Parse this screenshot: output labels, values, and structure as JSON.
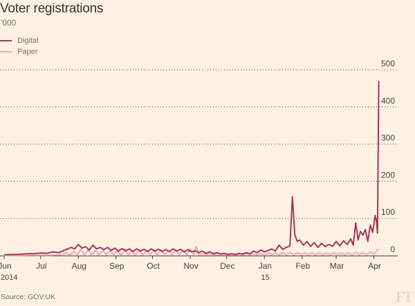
{
  "header": {
    "title": "Voter registrations",
    "subtitle": "'000"
  },
  "source": "Source: GOV.UK",
  "logo": "FT",
  "colors": {
    "digital": "#a0385e",
    "paper": "#f0a5b4",
    "grid": "#555555",
    "axis": "#43423e"
  },
  "chart_data": {
    "type": "line",
    "title": "Voter registrations",
    "ylabel": "'000",
    "ylim": [
      0,
      500
    ],
    "yticks": [
      "0",
      "100",
      "200",
      "300",
      "400",
      "500"
    ],
    "xlim": [
      "2014-06-01",
      "2015-04-24"
    ],
    "x_ticks": [
      {
        "label": "Jun",
        "sub": "2014"
      },
      {
        "label": "Jul",
        "sub": ""
      },
      {
        "label": "Aug",
        "sub": ""
      },
      {
        "label": "Sep",
        "sub": ""
      },
      {
        "label": "Oct",
        "sub": ""
      },
      {
        "label": "Nov",
        "sub": ""
      },
      {
        "label": "Dec",
        "sub": ""
      },
      {
        "label": "Jan",
        "sub": "15"
      },
      {
        "label": "Feb",
        "sub": ""
      },
      {
        "label": "Mar",
        "sub": ""
      },
      {
        "label": "Apr",
        "sub": ""
      }
    ],
    "series": [
      {
        "name": "Digital",
        "color": "#a0385e",
        "points": [
          [
            0,
            2
          ],
          [
            5,
            3
          ],
          [
            10,
            3
          ],
          [
            15,
            4
          ],
          [
            20,
            5
          ],
          [
            25,
            5
          ],
          [
            30,
            7
          ],
          [
            35,
            6
          ],
          [
            40,
            10
          ],
          [
            45,
            8
          ],
          [
            50,
            15
          ],
          [
            55,
            22
          ],
          [
            58,
            18
          ],
          [
            61,
            30
          ],
          [
            64,
            20
          ],
          [
            67,
            24
          ],
          [
            70,
            15
          ],
          [
            73,
            28
          ],
          [
            76,
            18
          ],
          [
            79,
            22
          ],
          [
            82,
            16
          ],
          [
            85,
            22
          ],
          [
            88,
            14
          ],
          [
            91,
            20
          ],
          [
            94,
            12
          ],
          [
            97,
            19
          ],
          [
            100,
            13
          ],
          [
            103,
            18
          ],
          [
            106,
            11
          ],
          [
            109,
            18
          ],
          [
            112,
            12
          ],
          [
            115,
            17
          ],
          [
            118,
            11
          ],
          [
            121,
            18
          ],
          [
            124,
            12
          ],
          [
            127,
            17
          ],
          [
            130,
            11
          ],
          [
            133,
            16
          ],
          [
            136,
            11
          ],
          [
            139,
            18
          ],
          [
            142,
            12
          ],
          [
            145,
            17
          ],
          [
            148,
            10
          ],
          [
            151,
            16
          ],
          [
            154,
            10
          ],
          [
            157,
            13
          ],
          [
            160,
            8
          ],
          [
            163,
            12
          ],
          [
            166,
            6
          ],
          [
            169,
            10
          ],
          [
            172,
            5
          ],
          [
            175,
            8
          ],
          [
            178,
            4
          ],
          [
            181,
            6
          ],
          [
            184,
            3
          ],
          [
            187,
            5
          ],
          [
            190,
            3
          ],
          [
            193,
            6
          ],
          [
            196,
            4
          ],
          [
            199,
            8
          ],
          [
            202,
            5
          ],
          [
            205,
            12
          ],
          [
            208,
            8
          ],
          [
            211,
            15
          ],
          [
            214,
            10
          ],
          [
            217,
            14
          ],
          [
            220,
            18
          ],
          [
            223,
            12
          ],
          [
            226,
            28
          ],
          [
            229,
            17
          ],
          [
            232,
            22
          ],
          [
            235,
            26
          ],
          [
            237,
            158
          ],
          [
            239,
            55
          ],
          [
            241,
            38
          ],
          [
            243,
            42
          ],
          [
            246,
            28
          ],
          [
            249,
            38
          ],
          [
            252,
            25
          ],
          [
            255,
            35
          ],
          [
            258,
            22
          ],
          [
            261,
            33
          ],
          [
            264,
            24
          ],
          [
            267,
            30
          ],
          [
            270,
            25
          ],
          [
            273,
            38
          ],
          [
            276,
            26
          ],
          [
            279,
            40
          ],
          [
            282,
            30
          ],
          [
            285,
            45
          ],
          [
            287,
            28
          ],
          [
            289,
            88
          ],
          [
            291,
            42
          ],
          [
            293,
            65
          ],
          [
            295,
            55
          ],
          [
            297,
            70
          ],
          [
            299,
            38
          ],
          [
            301,
            82
          ],
          [
            303,
            62
          ],
          [
            305,
            108
          ],
          [
            306,
            95
          ],
          [
            307,
            60
          ],
          [
            308,
            470
          ]
        ]
      },
      {
        "name": "Paper",
        "color": "#f0a5b4",
        "points": [
          [
            0,
            0
          ],
          [
            10,
            0
          ],
          [
            20,
            1
          ],
          [
            30,
            1
          ],
          [
            40,
            1
          ],
          [
            45,
            3
          ],
          [
            48,
            1
          ],
          [
            51,
            8
          ],
          [
            54,
            1
          ],
          [
            57,
            12
          ],
          [
            60,
            2
          ],
          [
            63,
            16
          ],
          [
            66,
            2
          ],
          [
            69,
            15
          ],
          [
            72,
            2
          ],
          [
            75,
            14
          ],
          [
            78,
            2
          ],
          [
            81,
            14
          ],
          [
            84,
            2
          ],
          [
            87,
            13
          ],
          [
            90,
            2
          ],
          [
            93,
            13
          ],
          [
            96,
            2
          ],
          [
            99,
            14
          ],
          [
            102,
            2
          ],
          [
            105,
            13
          ],
          [
            108,
            2
          ],
          [
            111,
            14
          ],
          [
            114,
            2
          ],
          [
            117,
            13
          ],
          [
            120,
            2
          ],
          [
            123,
            14
          ],
          [
            126,
            2
          ],
          [
            129,
            14
          ],
          [
            132,
            2
          ],
          [
            135,
            14
          ],
          [
            138,
            2
          ],
          [
            141,
            15
          ],
          [
            144,
            2
          ],
          [
            147,
            14
          ],
          [
            150,
            2
          ],
          [
            153,
            18
          ],
          [
            156,
            3
          ],
          [
            158,
            25
          ],
          [
            160,
            3
          ],
          [
            163,
            5
          ],
          [
            166,
            3
          ],
          [
            169,
            4
          ],
          [
            172,
            2
          ],
          [
            175,
            3
          ],
          [
            178,
            2
          ],
          [
            181,
            3
          ],
          [
            184,
            2
          ],
          [
            187,
            3
          ],
          [
            190,
            2
          ],
          [
            193,
            3
          ],
          [
            196,
            2
          ],
          [
            199,
            4
          ],
          [
            202,
            2
          ],
          [
            205,
            5
          ],
          [
            208,
            2
          ],
          [
            211,
            6
          ],
          [
            214,
            2
          ],
          [
            217,
            7
          ],
          [
            220,
            2
          ],
          [
            223,
            7
          ],
          [
            226,
            2
          ],
          [
            229,
            8
          ],
          [
            232,
            2
          ],
          [
            235,
            9
          ],
          [
            238,
            2
          ],
          [
            241,
            8
          ],
          [
            244,
            2
          ],
          [
            247,
            8
          ],
          [
            250,
            2
          ],
          [
            253,
            8
          ],
          [
            256,
            2
          ],
          [
            259,
            8
          ],
          [
            262,
            2
          ],
          [
            265,
            7
          ],
          [
            268,
            2
          ],
          [
            271,
            8
          ],
          [
            274,
            2
          ],
          [
            277,
            8
          ],
          [
            280,
            2
          ],
          [
            283,
            8
          ],
          [
            286,
            2
          ],
          [
            289,
            9
          ],
          [
            292,
            2
          ],
          [
            295,
            9
          ],
          [
            298,
            2
          ],
          [
            301,
            10
          ],
          [
            304,
            3
          ],
          [
            306,
            12
          ],
          [
            308,
            18
          ]
        ]
      }
    ]
  }
}
